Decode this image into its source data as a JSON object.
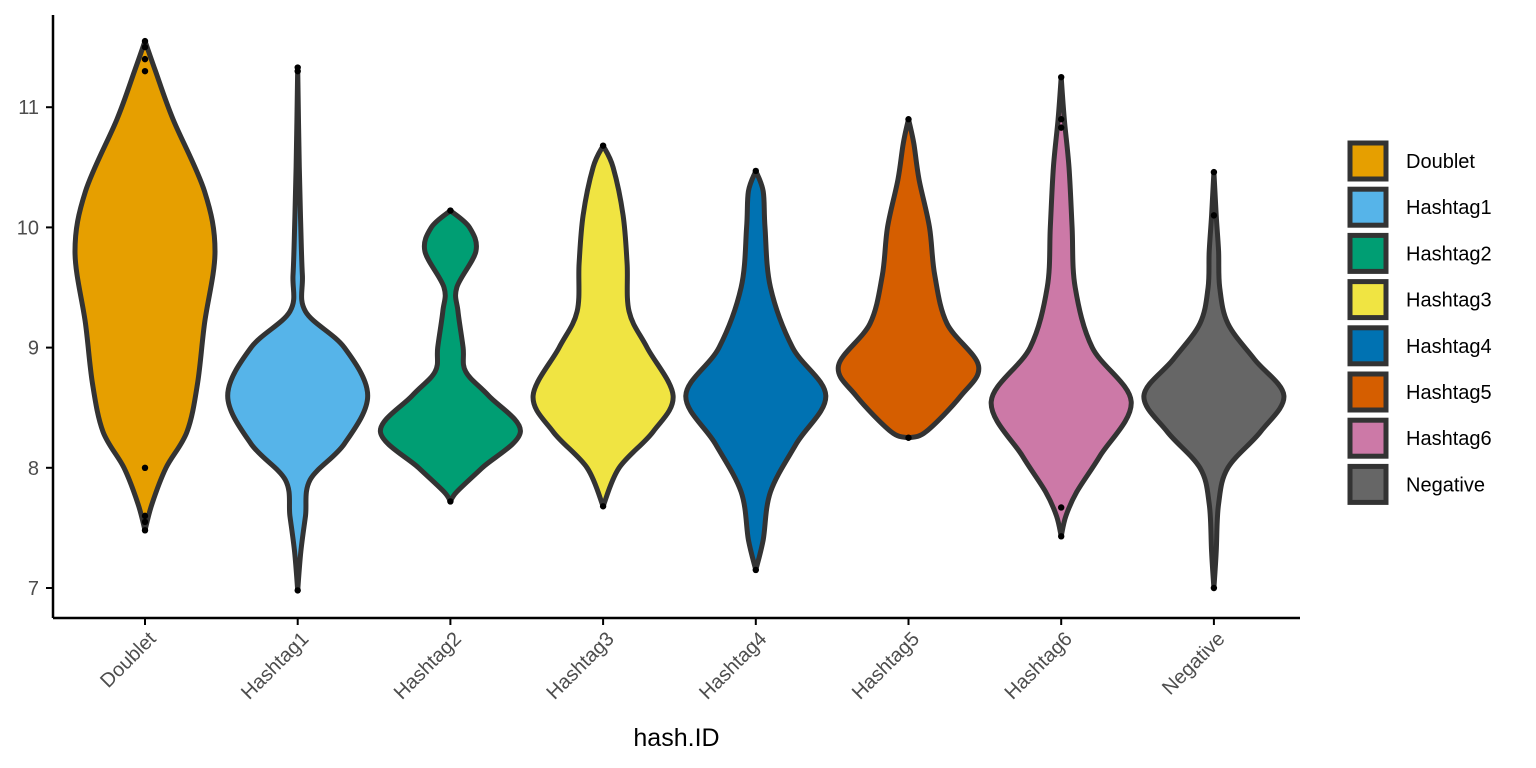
{
  "chart_data": {
    "type": "violin",
    "xlabel": "hash.ID",
    "ylabel": "",
    "ylim": [
      6.75,
      11.75
    ],
    "y_ticks": [
      7,
      8,
      9,
      10,
      11
    ],
    "grid": false,
    "legend_position": "right",
    "categories": [
      "Doublet",
      "Hashtag1",
      "Hashtag2",
      "Hashtag3",
      "Hashtag4",
      "Hashtag5",
      "Hashtag6",
      "Negative"
    ],
    "series": [
      {
        "name": "Doublet",
        "color": "#E69F00",
        "profile": [
          [
            7.48,
            0.0
          ],
          [
            7.7,
            0.02
          ],
          [
            8.0,
            0.06
          ],
          [
            8.3,
            0.12
          ],
          [
            8.7,
            0.15
          ],
          [
            9.2,
            0.17
          ],
          [
            9.8,
            0.2
          ],
          [
            10.3,
            0.17
          ],
          [
            10.9,
            0.08
          ],
          [
            11.3,
            0.03
          ],
          [
            11.55,
            0.0
          ]
        ],
        "points": [
          7.48,
          7.55,
          7.6,
          8.0,
          11.3,
          11.4,
          11.5,
          11.55
        ]
      },
      {
        "name": "Hashtag1",
        "color": "#56B4E9",
        "profile": [
          [
            6.98,
            0.0
          ],
          [
            7.3,
            0.02
          ],
          [
            7.6,
            0.05
          ],
          [
            7.9,
            0.08
          ],
          [
            8.2,
            0.3
          ],
          [
            8.6,
            0.45
          ],
          [
            9.0,
            0.3
          ],
          [
            9.3,
            0.05
          ],
          [
            9.6,
            0.03
          ],
          [
            10.0,
            0.02
          ],
          [
            10.5,
            0.01
          ],
          [
            11.33,
            0.0
          ]
        ],
        "points": [
          6.98,
          11.3,
          11.33
        ]
      },
      {
        "name": "Hashtag2",
        "color": "#009E73",
        "profile": [
          [
            7.72,
            0.0
          ],
          [
            7.8,
            0.05
          ],
          [
            8.0,
            0.25
          ],
          [
            8.3,
            0.55
          ],
          [
            8.6,
            0.3
          ],
          [
            8.8,
            0.12
          ],
          [
            9.0,
            0.1
          ],
          [
            9.3,
            0.06
          ],
          [
            9.5,
            0.05
          ],
          [
            9.8,
            0.2
          ],
          [
            10.0,
            0.15
          ],
          [
            10.14,
            0.0
          ]
        ],
        "points": [
          7.72,
          10.14
        ]
      },
      {
        "name": "Hashtag3",
        "color": "#F0E442",
        "profile": [
          [
            7.68,
            0.0
          ],
          [
            8.0,
            0.08
          ],
          [
            8.3,
            0.25
          ],
          [
            8.6,
            0.35
          ],
          [
            9.0,
            0.22
          ],
          [
            9.3,
            0.13
          ],
          [
            9.7,
            0.12
          ],
          [
            10.1,
            0.1
          ],
          [
            10.5,
            0.05
          ],
          [
            10.68,
            0.0
          ]
        ],
        "points": [
          7.68,
          10.68
        ]
      },
      {
        "name": "Hashtag4",
        "color": "#0072B2",
        "profile": [
          [
            7.15,
            0.0
          ],
          [
            7.4,
            0.04
          ],
          [
            7.8,
            0.08
          ],
          [
            8.2,
            0.22
          ],
          [
            8.6,
            0.38
          ],
          [
            9.0,
            0.2
          ],
          [
            9.5,
            0.08
          ],
          [
            10.0,
            0.05
          ],
          [
            10.3,
            0.04
          ],
          [
            10.47,
            0.0
          ]
        ],
        "points": [
          7.15,
          10.47
        ]
      },
      {
        "name": "Hashtag5",
        "color": "#D55E00",
        "profile": [
          [
            8.25,
            0.0
          ],
          [
            8.3,
            0.1
          ],
          [
            8.6,
            0.3
          ],
          [
            8.85,
            0.4
          ],
          [
            9.2,
            0.22
          ],
          [
            9.6,
            0.15
          ],
          [
            10.0,
            0.12
          ],
          [
            10.4,
            0.06
          ],
          [
            10.7,
            0.03
          ],
          [
            10.9,
            0.0
          ]
        ],
        "points": [
          8.25,
          10.9
        ]
      },
      {
        "name": "Hashtag6",
        "color": "#CC79A7",
        "profile": [
          [
            7.43,
            0.0
          ],
          [
            7.6,
            0.03
          ],
          [
            7.8,
            0.1
          ],
          [
            8.1,
            0.25
          ],
          [
            8.55,
            0.45
          ],
          [
            9.0,
            0.2
          ],
          [
            9.5,
            0.09
          ],
          [
            10.0,
            0.07
          ],
          [
            10.5,
            0.05
          ],
          [
            10.9,
            0.02
          ],
          [
            11.25,
            0.0
          ]
        ],
        "points": [
          7.43,
          7.67,
          10.83,
          10.9,
          11.25
        ]
      },
      {
        "name": "Negative",
        "color": "#666666",
        "profile": [
          [
            7.0,
            0.0
          ],
          [
            7.3,
            0.02
          ],
          [
            7.7,
            0.04
          ],
          [
            8.0,
            0.12
          ],
          [
            8.3,
            0.4
          ],
          [
            8.6,
            0.6
          ],
          [
            8.9,
            0.35
          ],
          [
            9.2,
            0.12
          ],
          [
            9.5,
            0.05
          ],
          [
            9.8,
            0.04
          ],
          [
            10.1,
            0.02
          ],
          [
            10.46,
            0.0
          ]
        ],
        "points": [
          7.0,
          10.1,
          10.46
        ]
      }
    ]
  }
}
